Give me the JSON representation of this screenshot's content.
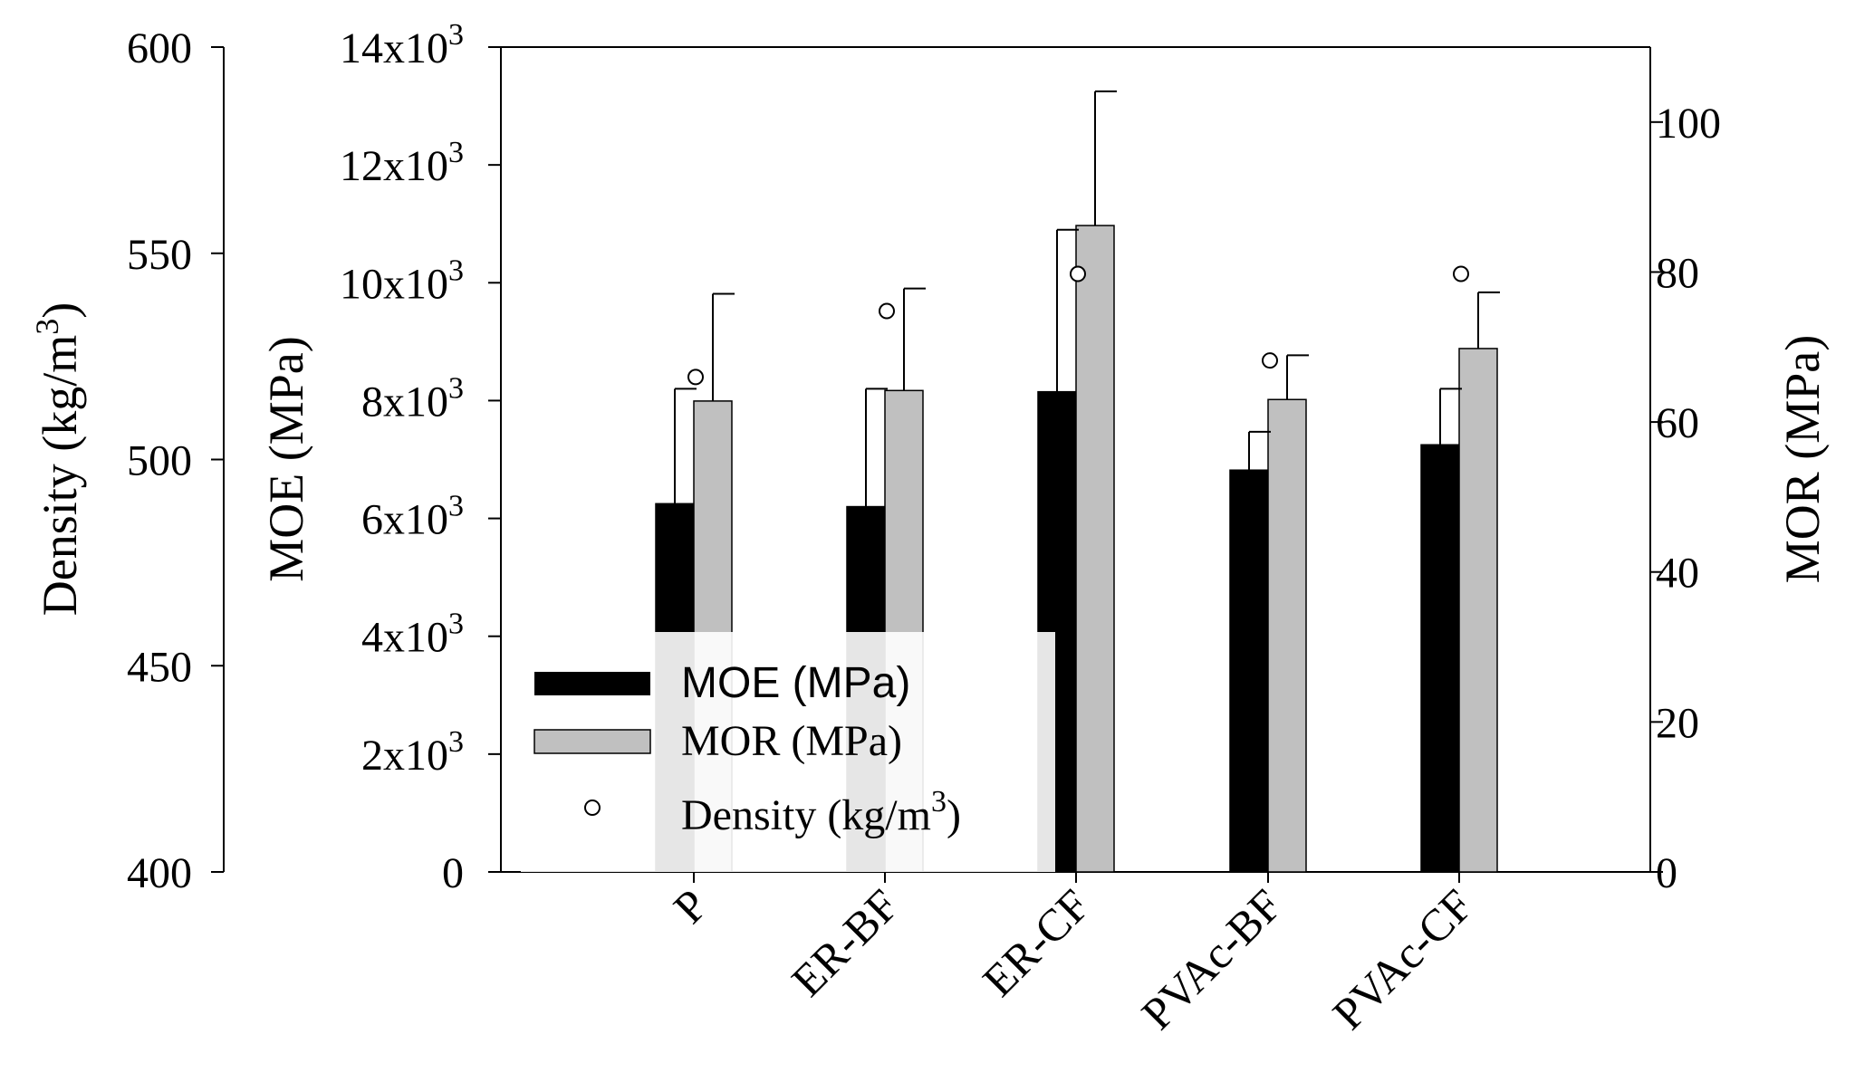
{
  "chart_data": {
    "type": "bar",
    "categories": [
      "P",
      "ER-BF",
      "ER-CF",
      "PVAc-BF",
      "PVAc-CF"
    ],
    "series": [
      {
        "name": "MOE (MPa)",
        "axis": "moe",
        "color": "#000000",
        "values": [
          6250,
          6200,
          8150,
          6820,
          7250
        ],
        "errors": [
          1950,
          2000,
          2750,
          650,
          950
        ]
      },
      {
        "name": "MOR (MPa)",
        "axis": "mor",
        "color": "#c0c0c0",
        "values": [
          62.8,
          64.2,
          86.2,
          63.0,
          69.8
        ],
        "errors": [
          14.3,
          13.6,
          17.9,
          5.9,
          7.5
        ]
      },
      {
        "name": "Density (kg/m",
        "name_sup": "3",
        "name_suffix": ")",
        "axis": "density",
        "marker": "open-circle",
        "values": [
          520,
          536,
          545,
          524,
          545
        ]
      }
    ],
    "axes": {
      "density": {
        "label": "Density (kg/m",
        "label_sup": "3",
        "label_suffix": ")",
        "ylim": [
          400,
          600
        ],
        "ticks": [
          {
            "value": 400,
            "label": "400"
          },
          {
            "value": 450,
            "label": "450"
          },
          {
            "value": 500,
            "label": "500"
          },
          {
            "value": 550,
            "label": "550"
          },
          {
            "value": 600,
            "label": "600"
          }
        ]
      },
      "moe": {
        "label": "MOE (MPa)",
        "ylim": [
          0,
          14000
        ],
        "ticks": [
          {
            "value": 0,
            "base": "0",
            "exp": ""
          },
          {
            "value": 2000,
            "base": "2x10",
            "exp": "3"
          },
          {
            "value": 4000,
            "base": "4x10",
            "exp": "3"
          },
          {
            "value": 6000,
            "base": "6x10",
            "exp": "3"
          },
          {
            "value": 8000,
            "base": "8x10",
            "exp": "3"
          },
          {
            "value": 10000,
            "base": "10x10",
            "exp": "3"
          },
          {
            "value": 12000,
            "base": "12x10",
            "exp": "3"
          },
          {
            "value": 14000,
            "base": "14x10",
            "exp": "3"
          }
        ]
      },
      "mor": {
        "label": "MOR (MPa)",
        "ylim": [
          0,
          110
        ],
        "ticks": [
          {
            "value": 0,
            "label": "0"
          },
          {
            "value": 20,
            "label": "20"
          },
          {
            "value": 40,
            "label": "40"
          },
          {
            "value": 60,
            "label": "60"
          },
          {
            "value": 80,
            "label": "80"
          },
          {
            "value": 100,
            "label": "100"
          }
        ]
      }
    },
    "legend": "bottom-left",
    "grid": false
  }
}
